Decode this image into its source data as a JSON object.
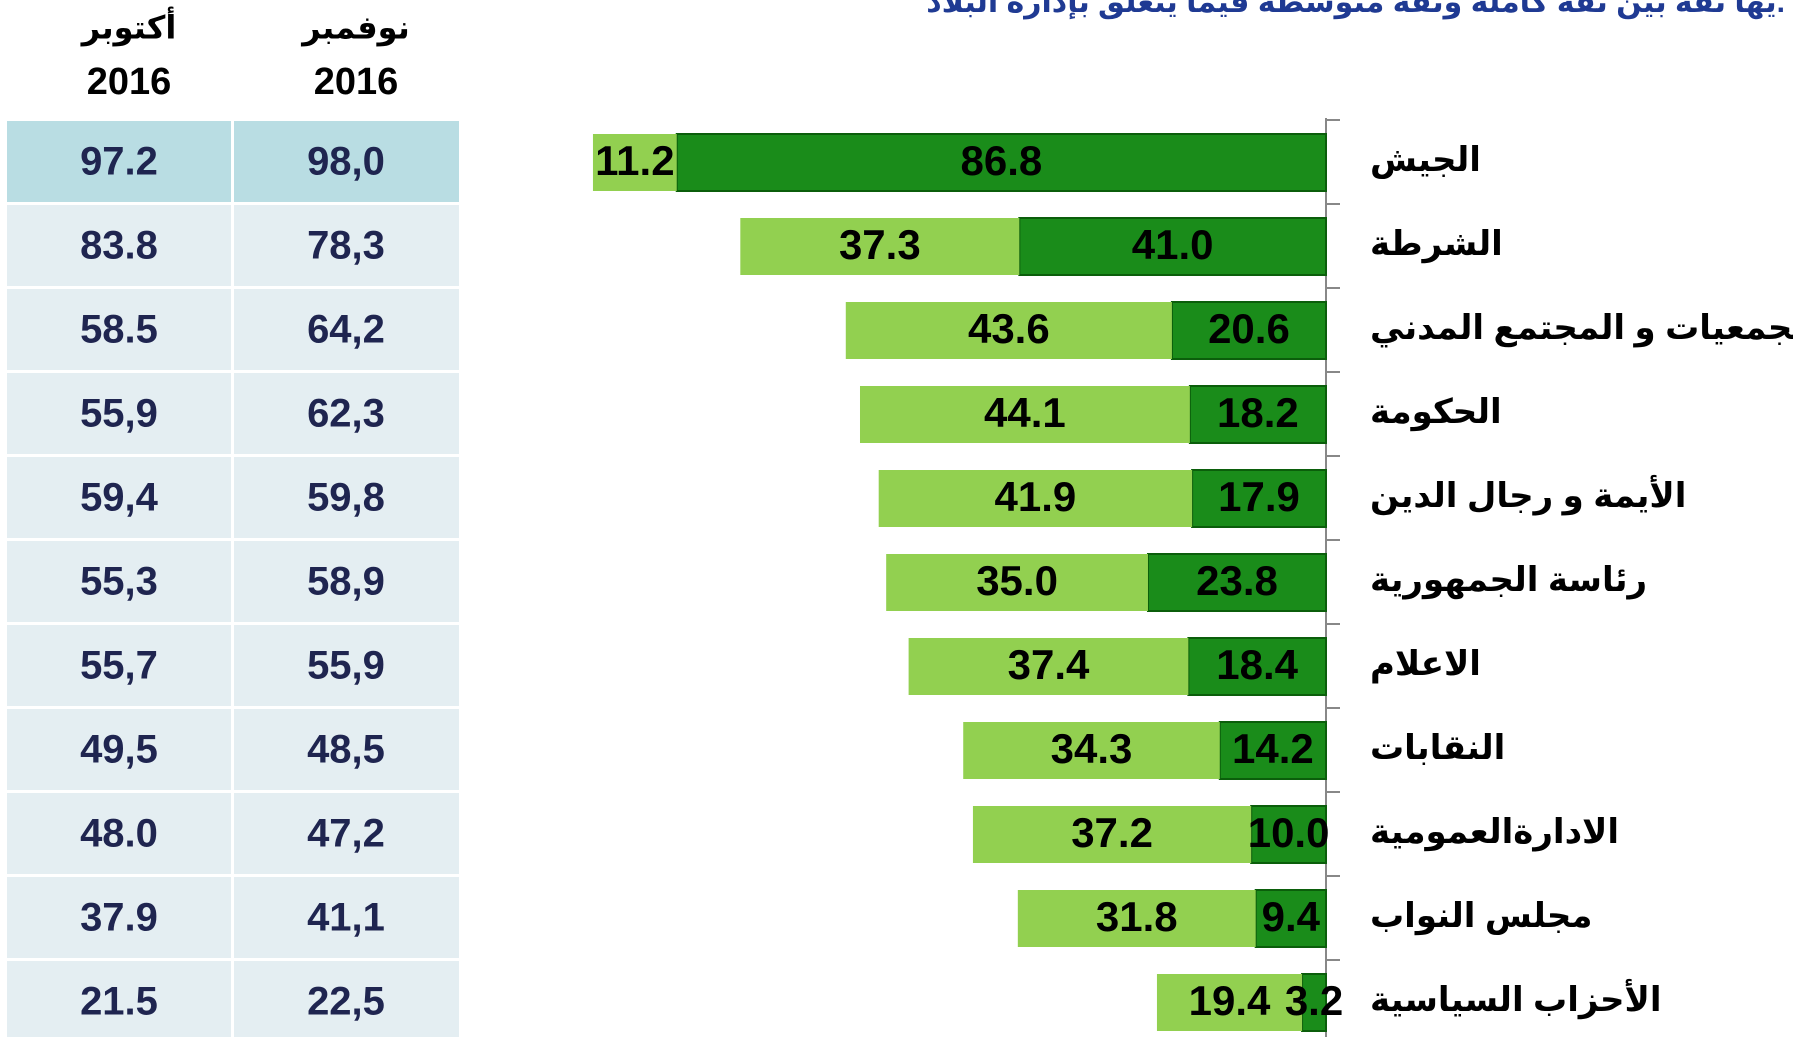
{
  "title": "يها ثقة بين ثقة كاملة وثقة متوسطة فيما يتعلق بإدارة البلاد.",
  "table": {
    "header": [
      {
        "month": "أكتوبر",
        "year": "2016"
      },
      {
        "month": "نوفمبر",
        "year": "2016"
      }
    ],
    "rows": [
      [
        "97.2",
        "98,0"
      ],
      [
        "83.8",
        "78,3"
      ],
      [
        "58.5",
        "64,2"
      ],
      [
        "55,9",
        "62,3"
      ],
      [
        "59,4",
        "59,8"
      ],
      [
        "55,3",
        "58,9"
      ],
      [
        "55,7",
        "55,9"
      ],
      [
        "49,5",
        "48,5"
      ],
      [
        "48.0",
        "47,2"
      ],
      [
        "37.9",
        "41,1"
      ],
      [
        "21.5",
        "22,5"
      ]
    ]
  },
  "chart_data": {
    "type": "stacked-bar-horizontal",
    "categories": [
      "الجيش",
      "الشرطة",
      "الجمعيات و المجتمع المدني",
      "الحكومة",
      "الأيمة و رجال الدين",
      "رئاسة الجمهورية",
      "الاعلام",
      "النقابات",
      "الادارةالعمومية",
      "مجلس النواب",
      "الأحزاب السياسية"
    ],
    "xlim": [
      0,
      100
    ],
    "series": [
      {
        "color": "#1a8c1a",
        "values": [
          86.8,
          41.0,
          20.6,
          18.2,
          17.9,
          23.8,
          18.4,
          14.2,
          10.0,
          9.4,
          3.2
        ],
        "value_labels": [
          "86.8",
          "41.0",
          "20.6",
          "18.2",
          "17.9",
          "23.8",
          "18.4",
          "14.2",
          "10.0",
          "9.4",
          "3.2"
        ]
      },
      {
        "color": "#92d050",
        "values": [
          11.2,
          37.3,
          43.6,
          44.1,
          41.9,
          35.0,
          37.4,
          34.3,
          37.2,
          31.8,
          19.4
        ],
        "value_labels": [
          "11.2",
          "37.3",
          "43.6",
          "44.1",
          "41.9",
          "35.0",
          "37.4",
          "34.3",
          "37.2",
          "31.8",
          "19.4"
        ]
      }
    ]
  }
}
